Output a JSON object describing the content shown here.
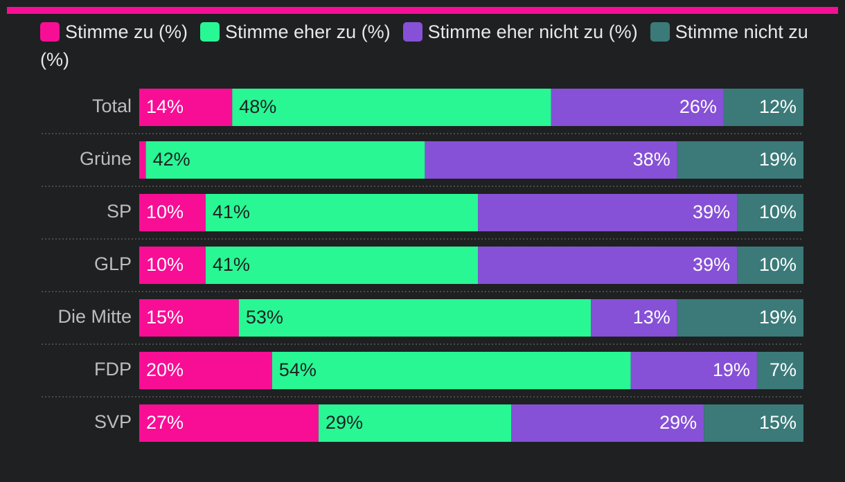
{
  "colors": {
    "accent": "#f70e95",
    "background": "#1f2022",
    "divider": "#5a5a5a"
  },
  "chart_data": {
    "type": "bar",
    "orientation": "horizontal",
    "stacked": true,
    "normalized": true,
    "categories": [
      "Total",
      "Grüne",
      "SP",
      "GLP",
      "Die Mitte",
      "FDP",
      "SVP"
    ],
    "series": [
      {
        "name": "Stimme zu (%)",
        "color": "#f70e95",
        "label_color": "#ffffff",
        "label_align": "start",
        "values": [
          14,
          1,
          10,
          10,
          15,
          20,
          27
        ],
        "labels": [
          "14%",
          "",
          "10%",
          "10%",
          "15%",
          "20%",
          "27%"
        ]
      },
      {
        "name": "Stimme eher zu (%)",
        "color": "#28f794",
        "label_color": "#1f2022",
        "label_align": "start",
        "values": [
          48,
          42,
          41,
          41,
          53,
          54,
          29
        ],
        "labels": [
          "48%",
          "42%",
          "41%",
          "41%",
          "53%",
          "54%",
          "29%"
        ]
      },
      {
        "name": "Stimme eher nicht zu (%)",
        "color": "#8651d6",
        "label_color": "#ffffff",
        "label_align": "end",
        "values": [
          26,
          38,
          39,
          39,
          13,
          19,
          29
        ],
        "labels": [
          "26%",
          "38%",
          "39%",
          "39%",
          "13%",
          "19%",
          "29%"
        ]
      },
      {
        "name": "Stimme nicht zu (%)",
        "color": "#3b7a79",
        "label_color": "#ffffff",
        "label_align": "end",
        "values": [
          12,
          19,
          10,
          10,
          19,
          7,
          15
        ],
        "labels": [
          "12%",
          "19%",
          "10%",
          "10%",
          "19%",
          "7%",
          "15%"
        ]
      }
    ],
    "legend_position": "top",
    "grid": false
  }
}
